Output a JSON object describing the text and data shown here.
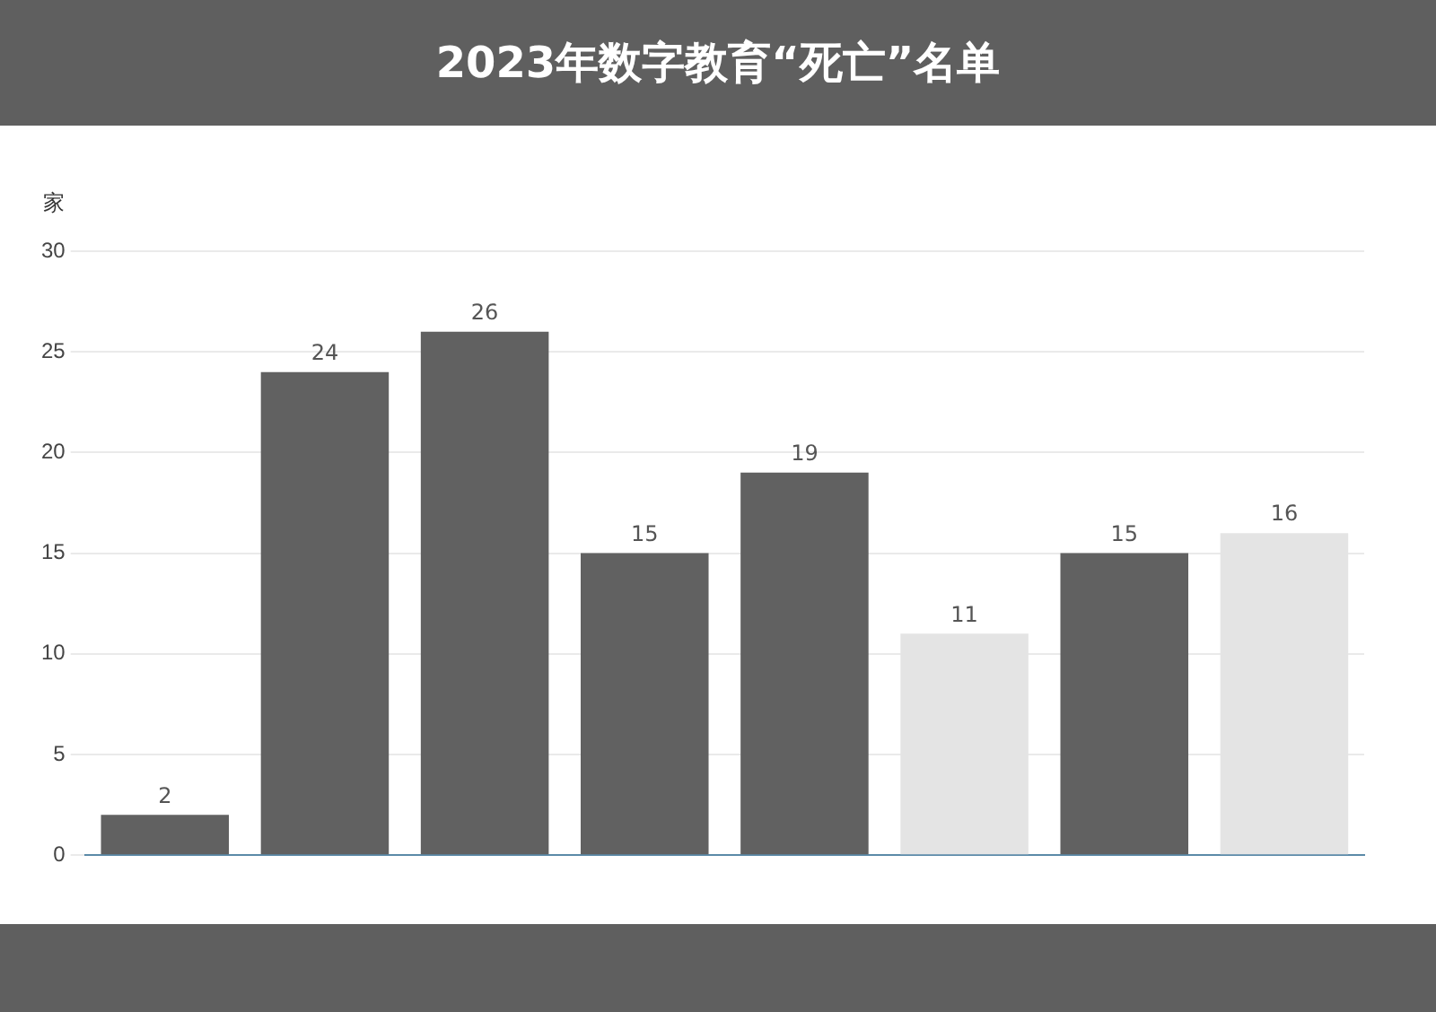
{
  "chart_data": {
    "type": "bar",
    "title": "2023年数字教育“死亡”名单",
    "ylabel": "家",
    "categories": [
      null,
      null,
      null,
      null,
      null,
      null,
      null,
      null
    ],
    "values": [
      2,
      24,
      26,
      15,
      19,
      11,
      15,
      16
    ],
    "colors": [
      "#616161",
      "#616161",
      "#616161",
      "#616161",
      "#616161",
      "#e4e4e4",
      "#616161",
      "#e4e4e4"
    ],
    "ylim": [
      0,
      30
    ],
    "yticks": [
      0,
      5,
      10,
      15,
      20,
      25,
      30
    ],
    "grid": "y",
    "data_labels": true,
    "legend": false
  }
}
